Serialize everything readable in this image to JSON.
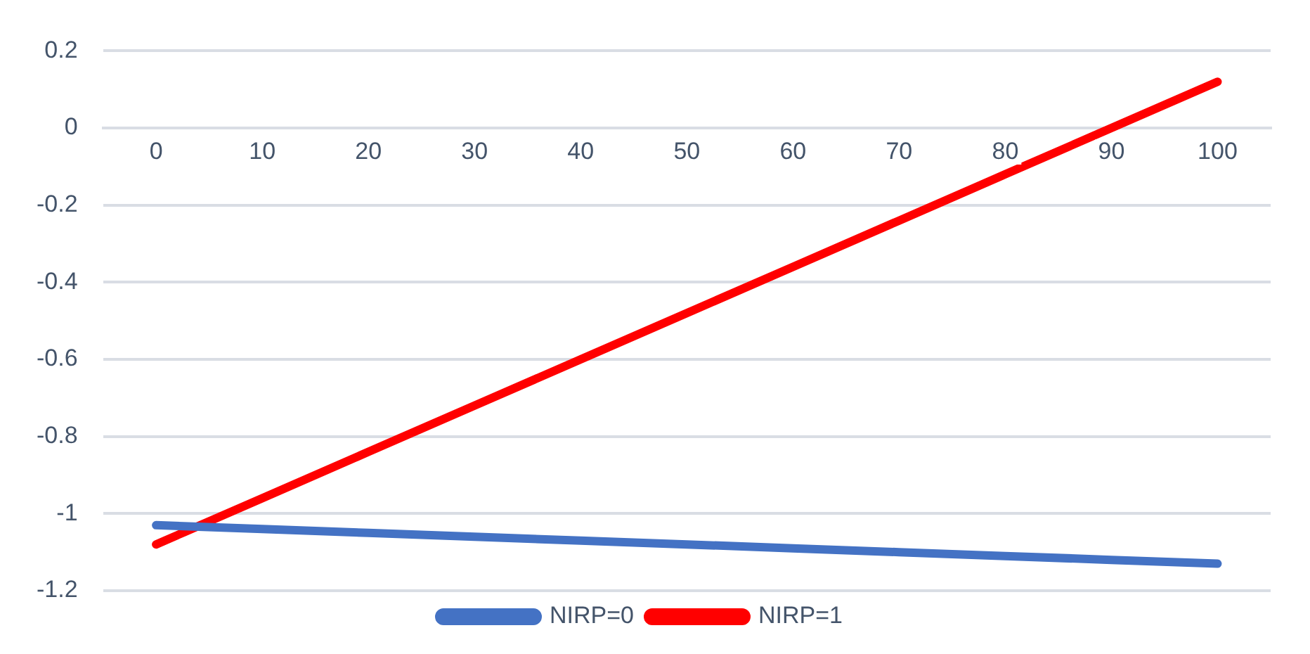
{
  "chart_data": {
    "type": "line",
    "categories": [
      "0",
      "10",
      "20",
      "30",
      "40",
      "50",
      "60",
      "70",
      "80",
      "90",
      "100"
    ],
    "series": [
      {
        "name": "NIRP=0",
        "color": "#4472c4",
        "values": [
          -1.03,
          -1.04,
          -1.05,
          -1.06,
          -1.07,
          -1.08,
          -1.09,
          -1.1,
          -1.11,
          -1.12,
          -1.13
        ]
      },
      {
        "name": "NIRP=1",
        "color": "#ff0000",
        "values": [
          -1.08,
          -0.96,
          -0.84,
          -0.72,
          -0.6,
          -0.48,
          -0.36,
          -0.24,
          -0.12,
          0,
          0.12
        ]
      }
    ],
    "ylim": [
      -1.2,
      0.2
    ],
    "yticks": [
      -1.2,
      -1,
      -0.8,
      -0.6,
      -0.4,
      -0.2,
      0,
      0.2
    ],
    "grid": "y",
    "legend": "bottom",
    "marker": "none",
    "line_style": "solid"
  }
}
